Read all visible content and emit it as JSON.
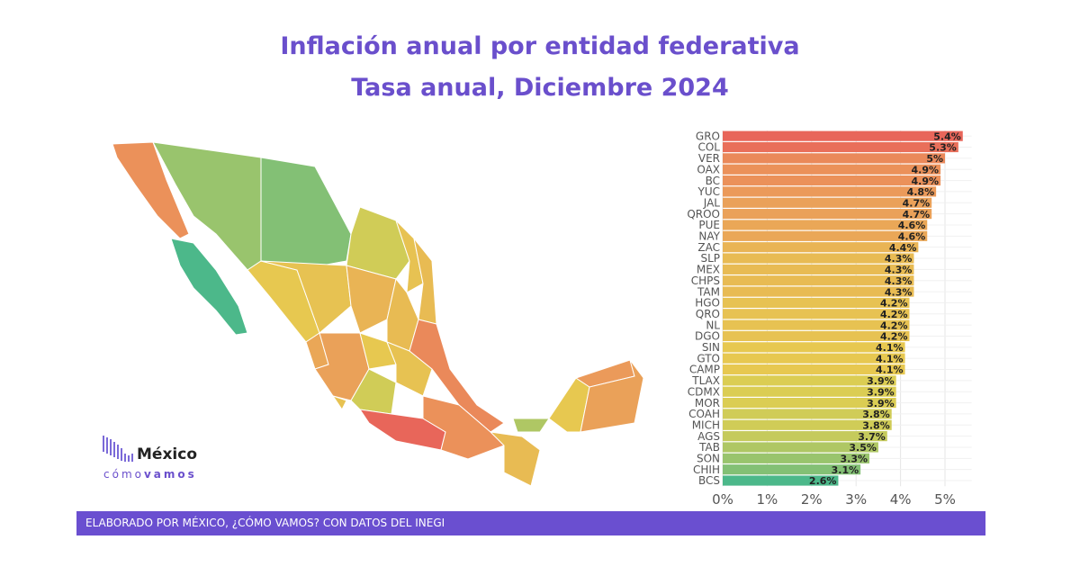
{
  "header": {
    "title": "Inflación anual por entidad federativa",
    "subtitle": "Tasa anual, Diciembre 2024"
  },
  "logo": {
    "word": "México",
    "sub_light": "cómo",
    "sub_bold": "vamos"
  },
  "footer": {
    "text": "ELABORADO POR MÉXICO, ¿CÓMO VAMOS? CON DATOS DEL INEGI"
  },
  "colors": {
    "low": "#4cb88a",
    "mid": "#e6cf4f",
    "high": "#eb9a5a",
    "top": "#e8665a",
    "title": "#6a4fcc"
  },
  "chart_data": {
    "type": "bar",
    "orientation": "horizontal",
    "title": "Inflación anual por entidad federativa",
    "subtitle": "Tasa anual, Diciembre 2024",
    "categories": [
      "GRO",
      "COL",
      "VER",
      "OAX",
      "BC",
      "YUC",
      "JAL",
      "QROO",
      "PUE",
      "NAY",
      "ZAC",
      "SLP",
      "MEX",
      "CHPS",
      "TAM",
      "HGO",
      "QRO",
      "NL",
      "DGO",
      "SIN",
      "GTO",
      "CAMP",
      "TLAX",
      "CDMX",
      "MOR",
      "COAH",
      "MICH",
      "AGS",
      "TAB",
      "SON",
      "CHIH",
      "BCS"
    ],
    "values": [
      5.4,
      5.3,
      5.0,
      4.9,
      4.9,
      4.8,
      4.7,
      4.7,
      4.6,
      4.6,
      4.4,
      4.3,
      4.3,
      4.3,
      4.3,
      4.2,
      4.2,
      4.2,
      4.2,
      4.1,
      4.1,
      4.1,
      3.9,
      3.9,
      3.9,
      3.8,
      3.8,
      3.7,
      3.5,
      3.3,
      3.1,
      2.6
    ],
    "labels": [
      "5.4%",
      "5.3%",
      "5%",
      "4.9%",
      "4.9%",
      "4.8%",
      "4.7%",
      "4.7%",
      "4.6%",
      "4.6%",
      "4.4%",
      "4.3%",
      "4.3%",
      "4.3%",
      "4.3%",
      "4.2%",
      "4.2%",
      "4.2%",
      "4.2%",
      "4.1%",
      "4.1%",
      "4.1%",
      "3.9%",
      "3.9%",
      "3.9%",
      "3.8%",
      "3.8%",
      "3.7%",
      "3.5%",
      "3.3%",
      "3.1%",
      "2.6%"
    ],
    "xticks": [
      "0%",
      "1%",
      "2%",
      "3%",
      "4%",
      "5%"
    ],
    "xlim": [
      0,
      5.6
    ],
    "grid": true
  },
  "map_regions": [
    {
      "state": "BC",
      "value": 4.9
    },
    {
      "state": "BCS",
      "value": 2.6
    },
    {
      "state": "SON",
      "value": 3.3
    },
    {
      "state": "CHIH",
      "value": 3.1
    },
    {
      "state": "COAH",
      "value": 3.8
    },
    {
      "state": "NL",
      "value": 4.2
    },
    {
      "state": "TAM",
      "value": 4.3
    },
    {
      "state": "SIN",
      "value": 4.1
    },
    {
      "state": "DGO",
      "value": 4.2
    },
    {
      "state": "ZAC",
      "value": 4.4
    },
    {
      "state": "SLP",
      "value": 4.3
    },
    {
      "state": "NAY",
      "value": 4.6
    },
    {
      "state": "JAL",
      "value": 4.7
    },
    {
      "state": "MICH",
      "value": 3.8
    },
    {
      "state": "GTO",
      "value": 4.1
    },
    {
      "state": "VER",
      "value": 5.0
    },
    {
      "state": "GRO",
      "value": 5.4
    },
    {
      "state": "OAX",
      "value": 4.9
    },
    {
      "state": "CHPS",
      "value": 4.3
    },
    {
      "state": "TAB",
      "value": 3.5
    },
    {
      "state": "CAMP",
      "value": 4.1
    },
    {
      "state": "YUC",
      "value": 4.8
    },
    {
      "state": "QROO",
      "value": 4.7
    }
  ]
}
